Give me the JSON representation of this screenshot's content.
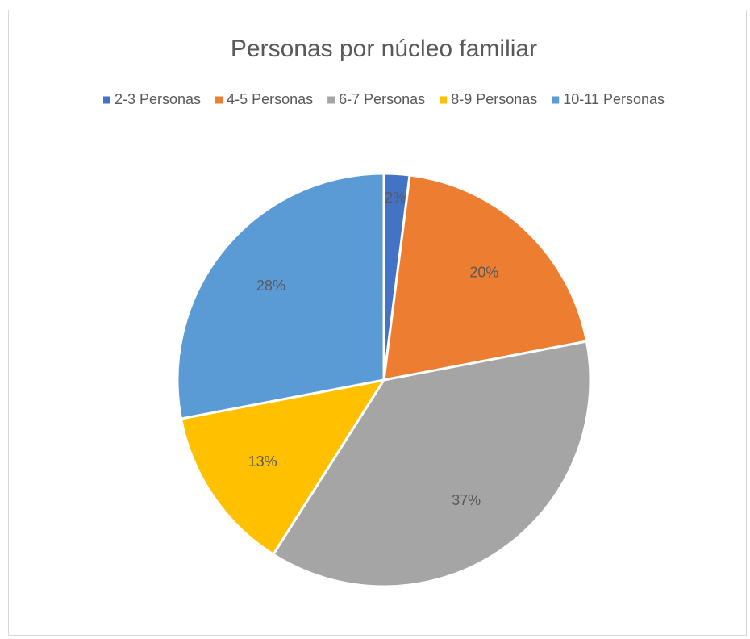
{
  "chart_data": {
    "type": "pie",
    "title": "Personas por núcleo familiar",
    "categories": [
      "2-3 Personas",
      "4-5 Personas",
      "6-7 Personas",
      "8-9 Personas",
      "10-11 Personas"
    ],
    "values": [
      2,
      20,
      37,
      13,
      28
    ],
    "value_labels": [
      "2%",
      "20%",
      "37%",
      "13%",
      "28%"
    ],
    "colors": [
      "#4472c4",
      "#ed7d31",
      "#a5a5a5",
      "#ffc000",
      "#5b9bd5"
    ],
    "legend": "top"
  }
}
